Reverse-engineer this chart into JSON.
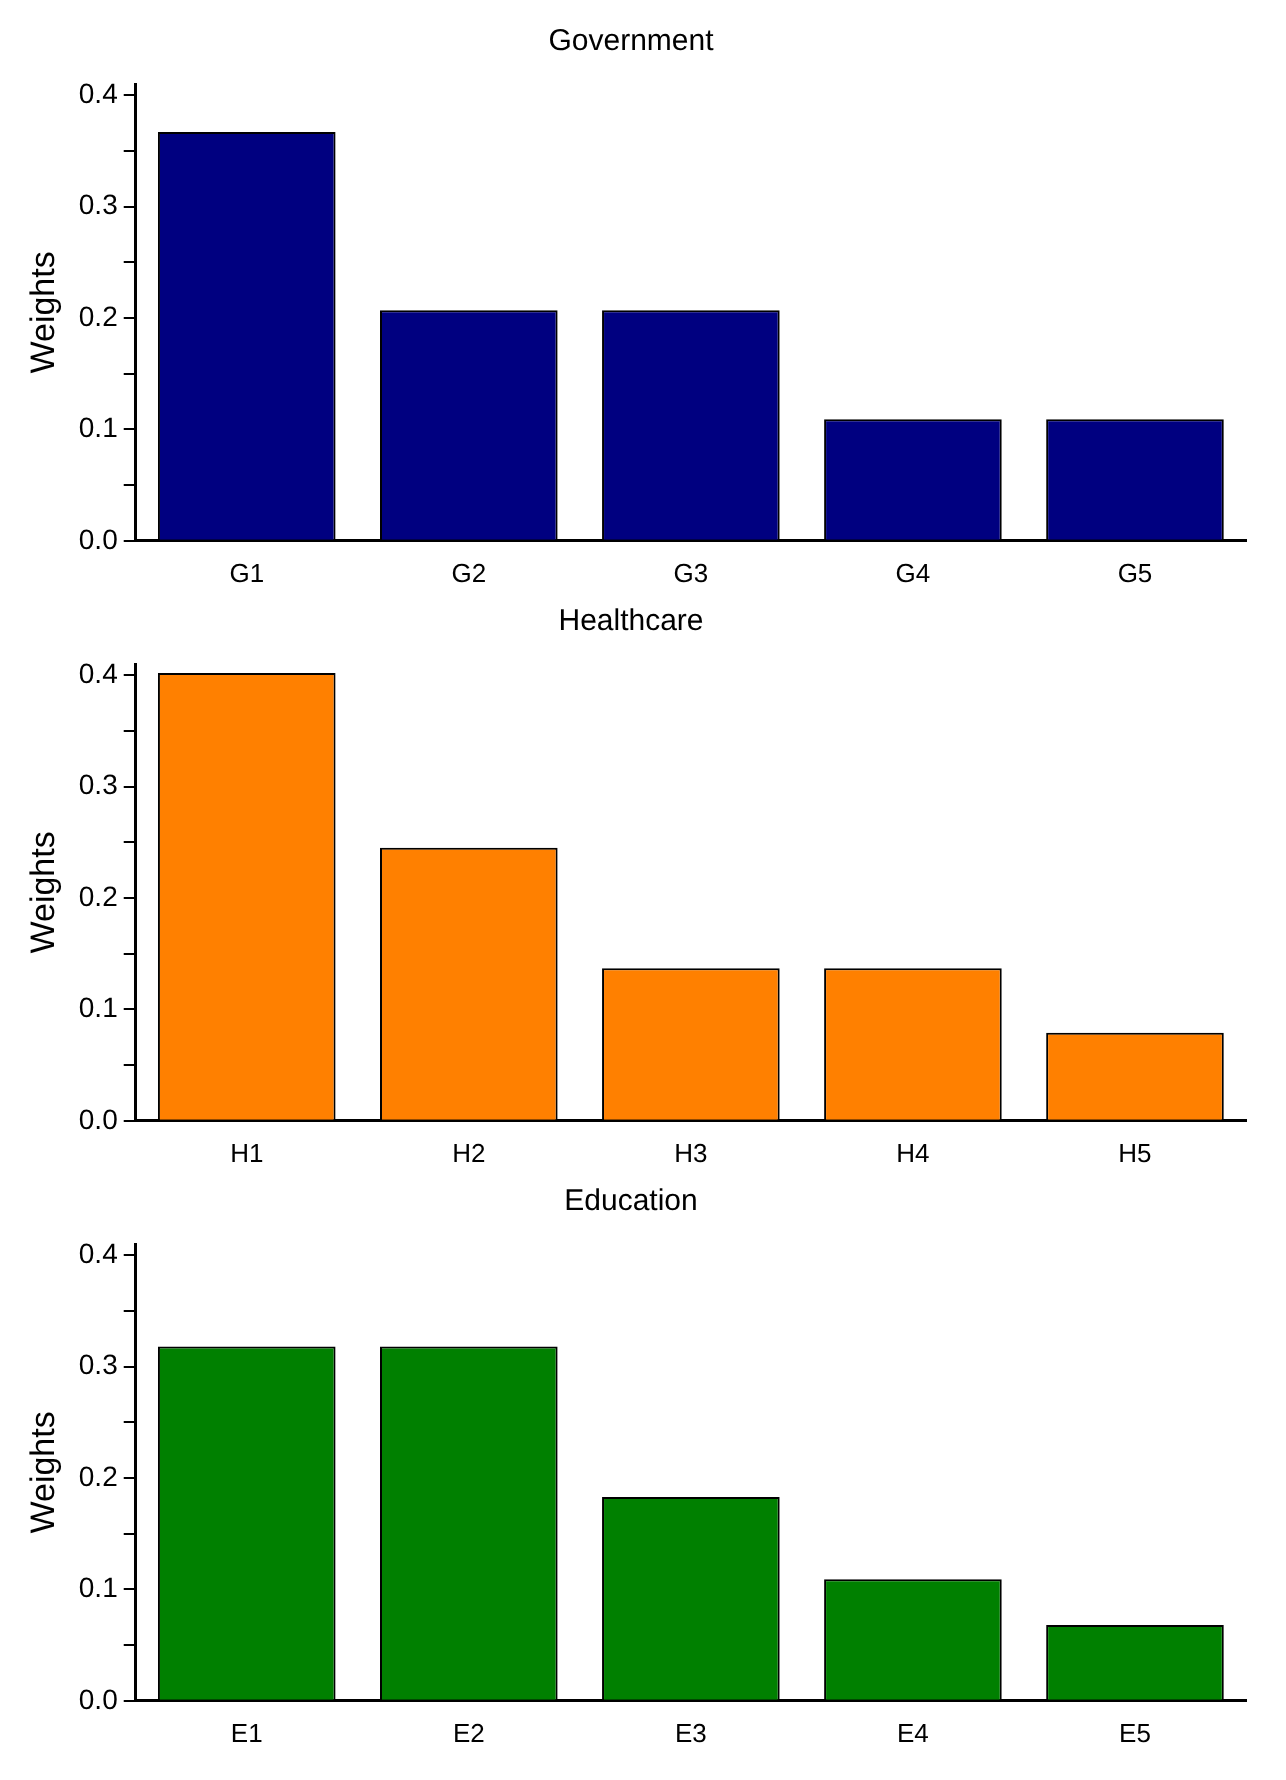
{
  "chart_data": [
    {
      "type": "bar",
      "title": "Government",
      "ylabel": "Weights",
      "categories": [
        "G1",
        "G2",
        "G3",
        "G4",
        "G5"
      ],
      "values": [
        0.367,
        0.207,
        0.207,
        0.109,
        0.109
      ],
      "color": "#000080",
      "ylim": [
        0,
        0.41
      ],
      "yticks": [
        {
          "value": 0,
          "label": "0.0"
        },
        {
          "value": 0.05,
          "label": null
        },
        0.1,
        {
          "value": 0.15,
          "label": null
        },
        0.2,
        {
          "value": 0.25,
          "label": null
        },
        0.3,
        {
          "value": 0.35,
          "label": null
        },
        0.4
      ],
      "grid": false
    },
    {
      "type": "bar",
      "title": "Healthcare",
      "ylabel": "Weights",
      "categories": [
        "H1",
        "H2",
        "H3",
        "H4",
        "H5"
      ],
      "values": [
        0.402,
        0.245,
        0.137,
        0.137,
        0.079
      ],
      "color": "#ff8000",
      "ylim": [
        0,
        0.41
      ],
      "yticks": [
        {
          "value": 0,
          "label": "0.0"
        },
        {
          "value": 0.05,
          "label": null
        },
        0.1,
        {
          "value": 0.15,
          "label": null
        },
        0.2,
        {
          "value": 0.25,
          "label": null
        },
        0.3,
        {
          "value": 0.35,
          "label": null
        },
        0.4
      ],
      "grid": false
    },
    {
      "type": "bar",
      "title": "Education",
      "ylabel": "Weights",
      "categories": [
        "E1",
        "E2",
        "E3",
        "E4",
        "E5"
      ],
      "values": [
        0.318,
        0.318,
        0.183,
        0.109,
        0.068
      ],
      "color": "#008000",
      "ylim": [
        0,
        0.41
      ],
      "yticks": [
        {
          "value": 0,
          "label": "0.0"
        },
        {
          "value": 0.05,
          "label": null
        },
        0.1,
        {
          "value": 0.15,
          "label": null
        },
        0.2,
        {
          "value": 0.25,
          "label": null
        },
        0.3,
        {
          "value": 0.35,
          "label": null
        },
        0.4
      ],
      "grid": false
    }
  ]
}
